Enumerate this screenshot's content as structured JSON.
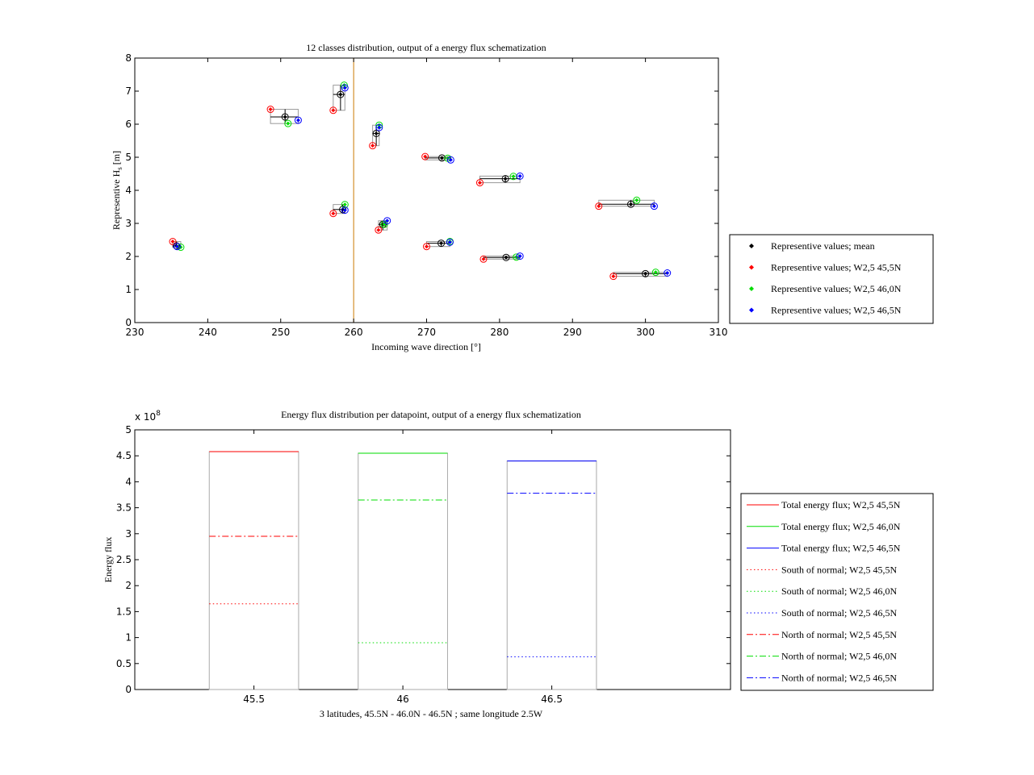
{
  "chart_data": [
    {
      "type": "scatter",
      "title": "12 classes distribution, output of a energy flux schematization",
      "xlabel": "Incoming wave direction [°]",
      "ylabel": "Representive H",
      "ylabel_sub": "s",
      "ylabel_unit": " [m]",
      "xlim": [
        230,
        310
      ],
      "ylim": [
        0,
        8
      ],
      "xticks": [
        "230",
        "240",
        "250",
        "260",
        "270",
        "280",
        "290",
        "300",
        "310"
      ],
      "yticks": [
        "0",
        "1",
        "2",
        "3",
        "4",
        "5",
        "6",
        "7",
        "8"
      ],
      "vline_x": 260,
      "vline_color": "#cc7a00",
      "legend_position": "outside right",
      "series": [
        {
          "name": "Representive values; mean",
          "color": "#000000",
          "x": [
            235.7,
            250.6,
            258.2,
            263.1,
            272.1,
            280.8,
            264.0,
            272.0,
            280.9,
            298.0,
            258.5,
            300.0
          ],
          "y": [
            2.32,
            6.22,
            6.9,
            5.72,
            4.98,
            4.35,
            2.97,
            2.4,
            1.97,
            3.58,
            3.42,
            1.48
          ]
        },
        {
          "name": "Representive values; W2,5 45,5N",
          "color": "#ff0000",
          "x": [
            235.2,
            248.6,
            257.2,
            262.6,
            269.8,
            277.3,
            263.4,
            270.0,
            277.8,
            293.6,
            257.2,
            295.6
          ],
          "y": [
            2.45,
            6.45,
            6.42,
            5.35,
            5.02,
            4.23,
            2.8,
            2.3,
            1.92,
            3.52,
            3.3,
            1.4
          ]
        },
        {
          "name": "Representive values; W2,5 46,0N",
          "color": "#00dd00",
          "x": [
            236.3,
            251.0,
            258.7,
            263.5,
            272.9,
            281.9,
            264.2,
            273.2,
            282.3,
            298.8,
            258.8,
            301.4
          ],
          "y": [
            2.28,
            6.02,
            7.18,
            5.97,
            4.97,
            4.42,
            2.97,
            2.45,
            1.98,
            3.7,
            3.57,
            1.52
          ]
        },
        {
          "name": "Representive values; W2,5 46,5N",
          "color": "#0000ff",
          "x": [
            235.8,
            252.4,
            258.8,
            263.5,
            273.3,
            282.8,
            264.6,
            273.2,
            282.8,
            301.2,
            258.8,
            303.0
          ],
          "y": [
            2.3,
            6.12,
            7.1,
            5.9,
            4.92,
            4.43,
            3.08,
            2.43,
            2.01,
            3.52,
            3.4,
            1.5
          ]
        }
      ]
    },
    {
      "type": "bar",
      "title": "Energy flux distribution per datapoint, output of a energy flux schematization",
      "xlabel": "3 latitudes, 45.5N - 46.0N - 46.5N ; same longitude 2.5W",
      "ylabel": "Energy flux",
      "exponent_label": "x 10",
      "exponent_power": "8",
      "xlim": [
        45.1,
        47.1
      ],
      "ylim": [
        0,
        5
      ],
      "xticks": [
        "45.5",
        "46",
        "46.5"
      ],
      "yticks": [
        "0",
        "0.5",
        "1",
        "1.5",
        "2",
        "2.5",
        "3",
        "3.5",
        "4",
        "4.5",
        "5"
      ],
      "categories": [
        "45.5",
        "46",
        "46.5"
      ],
      "bar_halfwidth": 0.15,
      "bar_outline_color": "#aaaaaa",
      "legend_position": "outside right",
      "series": [
        {
          "name": "Total energy flux; W2,5 45,5N",
          "color": "#ff0000",
          "style": "solid",
          "category": "45.5",
          "value": 4.58
        },
        {
          "name": "Total energy flux; W2,5 46,0N",
          "color": "#00dd00",
          "style": "solid",
          "category": "46",
          "value": 4.55
        },
        {
          "name": "Total energy flux; W2,5 46,5N",
          "color": "#0000ff",
          "style": "solid",
          "category": "46.5",
          "value": 4.4
        },
        {
          "name": "South of normal; W2,5 45,5N",
          "color": "#ff0000",
          "style": "dotted",
          "category": "45.5",
          "value": 1.65
        },
        {
          "name": "South of normal; W2,5 46,0N",
          "color": "#00dd00",
          "style": "dotted",
          "category": "46",
          "value": 0.9
        },
        {
          "name": "South of normal; W2,5 46,5N",
          "color": "#0000ff",
          "style": "dotted",
          "category": "46.5",
          "value": 0.63
        },
        {
          "name": "North of normal; W2,5 45,5N",
          "color": "#ff0000",
          "style": "dashdot",
          "category": "45.5",
          "value": 2.95
        },
        {
          "name": "North of normal; W2,5 46,0N",
          "color": "#00dd00",
          "style": "dashdot",
          "category": "46",
          "value": 3.65
        },
        {
          "name": "North of normal; W2,5 46,5N",
          "color": "#0000ff",
          "style": "dashdot",
          "category": "46.5",
          "value": 3.78
        }
      ]
    }
  ]
}
